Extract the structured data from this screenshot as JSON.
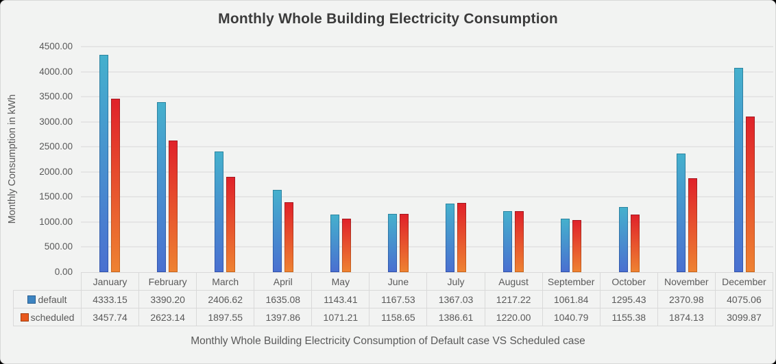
{
  "frame": {
    "background": "#f2f3f2",
    "border_color": "#d8d8d8"
  },
  "chart_data": {
    "type": "bar",
    "title": "Monthly Whole Building Electricity Consumption",
    "ylabel": "Monthly Consumption in kWh",
    "xlabel": "",
    "caption": "Monthly Whole Building Electricity Consumption of Default case VS Scheduled case",
    "categories": [
      "January",
      "February",
      "March",
      "April",
      "May",
      "June",
      "July",
      "August",
      "September",
      "October",
      "November",
      "December"
    ],
    "series": [
      {
        "name": "default",
        "values": [
          4333.15,
          3390.2,
          2406.62,
          1635.08,
          1143.41,
          1167.53,
          1367.03,
          1217.22,
          1061.84,
          1295.43,
          2370.98,
          4075.06
        ],
        "fill_top": "#45b0cd",
        "fill_bottom": "#4a70d0",
        "border_top": "#2b85a0",
        "border_bottom": "#3253ae",
        "swatch_fill": "#3d84c1",
        "swatch_border": "#275e90"
      },
      {
        "name": "scheduled",
        "values": [
          3457.74,
          2623.14,
          1897.55,
          1397.86,
          1071.21,
          1158.65,
          1386.61,
          1220.0,
          1040.79,
          1155.38,
          1874.13,
          3099.87
        ],
        "fill_top": "#e0222a",
        "fill_bottom": "#ee8232",
        "border_top": "#a41820",
        "border_bottom": "#c9661c",
        "swatch_fill": "#e8581c",
        "swatch_border": "#a03c0d"
      }
    ],
    "ylim": [
      0,
      4500
    ],
    "ytick_step": 500,
    "ytick_labels": [
      "4500.00",
      "4000.00",
      "3500.00",
      "3000.00",
      "2500.00",
      "2000.00",
      "1500.00",
      "1000.00",
      "500.00",
      "0.00"
    ],
    "grid": true,
    "gridline_color": "#e5e5e5",
    "legend_position": "table-left",
    "value_decimals": 2
  },
  "text_colors": {
    "title": "#3b3b3b",
    "axis": "#595959",
    "table": "#595959"
  }
}
